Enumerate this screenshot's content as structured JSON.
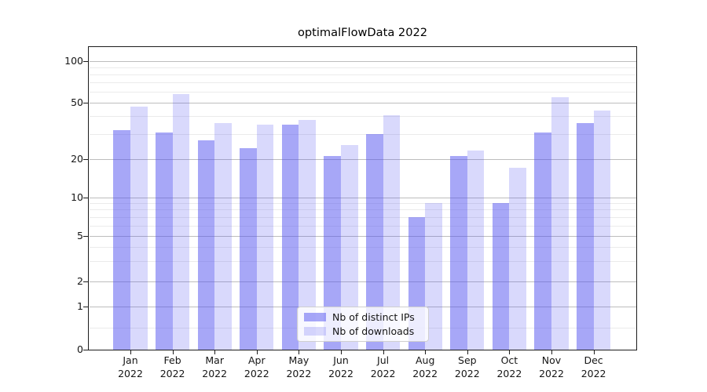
{
  "chart_data": {
    "type": "bar",
    "title": "optimalFlowData 2022",
    "x_months": [
      "Jan",
      "Feb",
      "Mar",
      "Apr",
      "May",
      "Jun",
      "Jul",
      "Aug",
      "Sep",
      "Oct",
      "Nov",
      "Dec"
    ],
    "x_year": "2022",
    "series": [
      {
        "name": "Nb of distinct IPs",
        "color": "rgba(80,80,240,0.5)",
        "values": [
          32,
          31,
          27,
          24,
          35,
          21,
          30,
          7,
          21,
          9,
          31,
          36
        ]
      },
      {
        "name": "Nb of downloads",
        "color": "rgba(80,80,240,0.22)",
        "values": [
          47,
          58,
          36,
          35,
          38,
          25,
          41,
          9,
          23,
          17,
          55,
          44
        ]
      }
    ],
    "yscale": "symlog",
    "yticks_major": [
      0,
      1,
      2,
      5,
      10,
      20,
      50,
      100
    ],
    "ytick_labels": [
      "0",
      "1",
      "2",
      "5",
      "10",
      "20",
      "50",
      "100"
    ],
    "yticks_minor": [
      0.5,
      3,
      4,
      6,
      7,
      8,
      9,
      30,
      40,
      60,
      70,
      80,
      90
    ],
    "ylim": [
      0,
      130
    ],
    "grid": true,
    "legend": {
      "position": "lower center",
      "entries": [
        "Nb of distinct IPs",
        "Nb of downloads"
      ]
    }
  }
}
